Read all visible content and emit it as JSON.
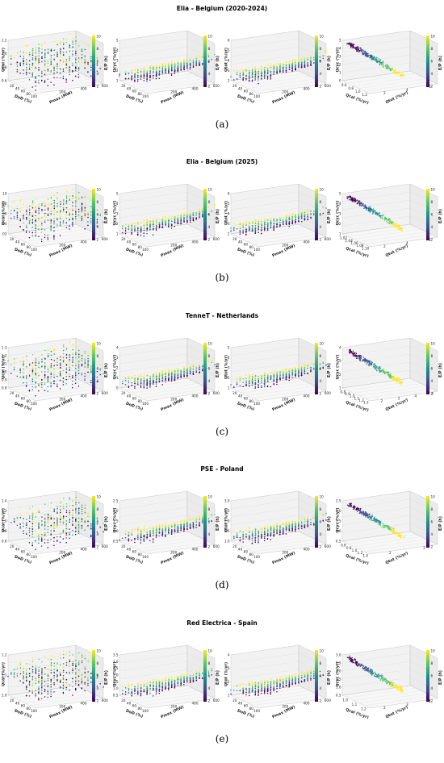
{
  "legend_label": "E/P (h)",
  "colormap": [
    "#440154",
    "#3b528b",
    "#21918c",
    "#5ec962",
    "#fde725"
  ],
  "colorbar_ticks": [
    "10",
    "8",
    "6",
    "4",
    "2"
  ],
  "panel_axes": [
    {
      "x": "DoD (%)",
      "y": "Pmax (MW)",
      "x_ticks": [
        "20",
        "40",
        "60",
        "80",
        "100"
      ],
      "y_ticks": [
        "200",
        "400",
        "600"
      ]
    },
    {
      "x": "DoD (%)",
      "y": "Pmax (MW)",
      "x_ticks": [
        "20",
        "40",
        "60",
        "80",
        "100"
      ],
      "y_ticks": [
        "200",
        "400",
        "600"
      ]
    },
    {
      "x": "DoD (%)",
      "y": "Pmax (MW)",
      "x_ticks": [
        "20",
        "40",
        "60",
        "80",
        "100"
      ],
      "y_ticks": [
        "200",
        "400",
        "600"
      ]
    },
    {
      "x": "Qcal (%/yr)",
      "y": "Qtot (%/yr)"
    }
  ],
  "figure_rows": [
    {
      "title": "Elia - Belgium (2020-2024)",
      "label": "(a)",
      "zlabels": [
        "Qcal (%/yr)",
        "Qcyc (%/yr)",
        "Qtot (%/yr)",
        "Qcyc (%/yr)"
      ],
      "zticks": [
        [
          "1.2",
          "1.0",
          "0.8",
          "0.6"
        ],
        [
          "5",
          "4",
          "3",
          "2",
          "1"
        ],
        [
          "6",
          "5",
          "4",
          "3",
          "2"
        ],
        [
          "5",
          "4",
          "3",
          "2",
          "1",
          "0"
        ]
      ],
      "qcal_ticks": [
        "0.6",
        "0.8",
        "1.0",
        "1.2"
      ],
      "qtot_ticks": [
        "2",
        "4",
        "6"
      ]
    },
    {
      "title": "Elia - Belgium (2025)",
      "label": "(b)",
      "zlabels": [
        "Qcal (%/yr)",
        "Qcyc (%/yr)",
        "Qtot (%/yr)",
        "Qcyc (%/yr)"
      ],
      "zticks": [
        [
          "1.10",
          "1.08",
          "1.06",
          "1.04",
          "1.02"
        ],
        [
          "5",
          "4",
          "3",
          "2",
          "1"
        ],
        [
          "6",
          "5",
          "4",
          "3",
          "2"
        ],
        [
          "5",
          "4",
          "3",
          "2",
          "1"
        ]
      ],
      "qcal_ticks": [
        "1.02",
        "1.04",
        "1.06",
        "1.08",
        "1.10"
      ],
      "qtot_ticks": [
        "2",
        "4",
        "6"
      ]
    },
    {
      "title": "TenneT - Netherlands",
      "label": "(c)",
      "zlabels": [
        "Qcal (%/yr)",
        "Qcyc (%/yr)",
        "Qtot (%/yr)",
        "Qcyc (%/yr)"
      ],
      "zticks": [
        [
          "1.3",
          "1.2",
          "1.1",
          "1.0",
          "0.9",
          "0.8"
        ],
        [
          "4",
          "3",
          "2",
          "1",
          "0"
        ],
        [
          "5",
          "4",
          "3",
          "2",
          "1"
        ],
        [
          "4",
          "3",
          "2",
          "1"
        ]
      ],
      "qcal_ticks": [
        "0.8",
        "0.9",
        "1.0",
        "1.1",
        "1.2",
        "1.3"
      ],
      "qtot_ticks": [
        "2",
        "3",
        "4",
        "5"
      ]
    },
    {
      "title": "PSE - Poland",
      "label": "(d)",
      "zlabels": [
        "Qcal (%/yr)",
        "Qcyc (%/yr)",
        "Qtot (%/yr)",
        "Qcyc (%/yr)"
      ],
      "zticks": [
        [
          "1.4",
          "1.2",
          "1.0",
          "0.8",
          "0.6"
        ],
        [
          "2.5",
          "2.0",
          "1.5",
          "1.0",
          "0.5"
        ],
        [
          "3.0",
          "2.5",
          "2.0",
          "1.5",
          "1.0"
        ],
        [
          "2.5",
          "2.0",
          "1.5",
          "1.0",
          "0.5"
        ]
      ],
      "qcal_ticks": [
        "0.6",
        "0.8",
        "1.0",
        "1.2",
        "1.4"
      ],
      "qtot_ticks": [
        "2",
        "3"
      ]
    },
    {
      "title": "Red Electrica - Spain",
      "label": "(e)",
      "zlabels": [
        "Qcal (%/yr)",
        "Qcyc (%/yr)",
        "Qtot (%/yr)",
        "Qcyc (%/yr)"
      ],
      "zticks": [
        [
          "1.2",
          "1.1",
          "1.0"
        ],
        [
          "3.5",
          "3.0",
          "2.5",
          "2.0",
          "1.5",
          "1.0",
          "0.5"
        ],
        [
          "4",
          "3",
          "2",
          "1"
        ],
        [
          "3.0",
          "2.5",
          "2.0",
          "1.5",
          "1.0",
          "0.5"
        ]
      ],
      "qcal_ticks": [
        "1.0",
        "1.1",
        "1.2"
      ],
      "qtot_ticks": [
        "2",
        "3",
        "4"
      ]
    }
  ]
}
